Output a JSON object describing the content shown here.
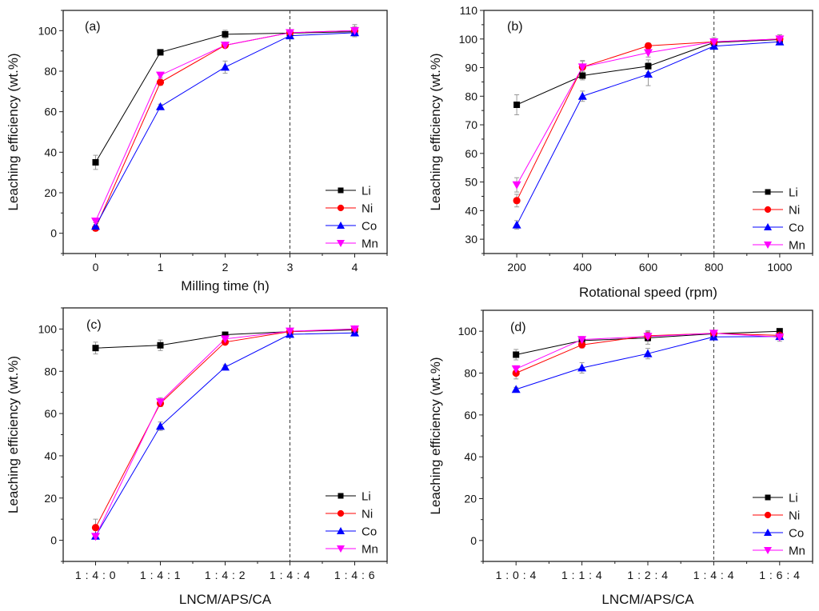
{
  "chart_data": [
    {
      "id": "a",
      "type": "line",
      "panel_label": "(a)",
      "xlabel": "Milling time (h)",
      "ylabel": "Leaching efficiency (wt.%)",
      "x_type": "numeric",
      "x": [
        0,
        1,
        2,
        3,
        4
      ],
      "xlim": [
        -0.5,
        4.5
      ],
      "xticks": [
        0,
        1,
        2,
        3,
        4
      ],
      "xtick_labels": [
        "0",
        "1",
        "2",
        "3",
        "4"
      ],
      "ylim": [
        -10,
        110
      ],
      "yticks": [
        0,
        20,
        40,
        60,
        80,
        100
      ],
      "ytick_labels": [
        "0",
        "20",
        "40",
        "60",
        "80",
        "100"
      ],
      "reference_line_x": 3,
      "legend": "bottom-right",
      "series": [
        {
          "name": "Li",
          "color": "#000000",
          "marker": "square",
          "values": [
            35,
            89.3,
            98.2,
            98.8,
            99.5
          ],
          "errors": [
            3.5,
            1.2,
            2,
            1,
            1.5
          ]
        },
        {
          "name": "Ni",
          "color": "#ff0000",
          "marker": "circle",
          "values": [
            2.5,
            74.5,
            92.8,
            99,
            100
          ],
          "errors": [
            0.8,
            1.5,
            1,
            1,
            3
          ]
        },
        {
          "name": "Co",
          "color": "#0000ff",
          "marker": "triangle-up",
          "values": [
            3.5,
            62.5,
            82,
            97.5,
            99
          ],
          "errors": [
            0.8,
            1.2,
            3,
            1,
            2
          ]
        },
        {
          "name": "Mn",
          "color": "#ff00ff",
          "marker": "triangle-down",
          "values": [
            6,
            78,
            92.8,
            99,
            100
          ],
          "errors": [
            0.8,
            1.2,
            1,
            1,
            2
          ]
        }
      ]
    },
    {
      "id": "b",
      "type": "line",
      "panel_label": "(b)",
      "xlabel": "Rotational speed (rpm)",
      "ylabel": "Leaching efficiency (wt.%)",
      "x_type": "numeric",
      "x": [
        200,
        400,
        600,
        800,
        1000
      ],
      "xlim": [
        100,
        1100
      ],
      "xticks": [
        200,
        400,
        600,
        800,
        1000
      ],
      "xtick_labels": [
        "200",
        "400",
        "600",
        "800",
        "1000"
      ],
      "ylim": [
        25,
        110
      ],
      "yticks": [
        30,
        40,
        50,
        60,
        70,
        80,
        90,
        100,
        110
      ],
      "ytick_labels": [
        "30",
        "40",
        "50",
        "60",
        "70",
        "80",
        "90",
        "100",
        "110"
      ],
      "reference_line_x": 800,
      "legend": "bottom-right",
      "series": [
        {
          "name": "Li",
          "color": "#000000",
          "marker": "square",
          "values": [
            77,
            87.2,
            90.5,
            98.8,
            99.8
          ],
          "errors": [
            3.5,
            1.5,
            2.2,
            1,
            1
          ]
        },
        {
          "name": "Ni",
          "color": "#ff0000",
          "marker": "circle",
          "values": [
            43.5,
            90.2,
            97.6,
            99,
            100
          ],
          "errors": [
            2.2,
            2,
            1,
            1,
            1.5
          ]
        },
        {
          "name": "Co",
          "color": "#0000ff",
          "marker": "triangle-up",
          "values": [
            35,
            80,
            87.7,
            97.5,
            99
          ],
          "errors": [
            1.5,
            1.8,
            4,
            1,
            1
          ]
        },
        {
          "name": "Mn",
          "color": "#ff00ff",
          "marker": "triangle-down",
          "values": [
            49,
            90.2,
            95.2,
            99,
            100
          ],
          "errors": [
            2.5,
            2.3,
            1.5,
            1.5,
            1.5
          ]
        }
      ]
    },
    {
      "id": "c",
      "type": "line",
      "panel_label": "(c)",
      "xlabel": "LNCM/APS/CA",
      "ylabel": "Leaching efficiency (wt.%)",
      "x_type": "categorical",
      "categories": [
        "1 : 4 : 0",
        "1 : 4 : 1",
        "1 : 4 : 2",
        "1 : 4 : 4",
        "1 : 4 : 6"
      ],
      "xlim": [
        -0.5,
        4.5
      ],
      "ylim": [
        -10,
        110
      ],
      "yticks": [
        0,
        20,
        40,
        60,
        80,
        100
      ],
      "ytick_labels": [
        "0",
        "20",
        "40",
        "60",
        "80",
        "100"
      ],
      "reference_line_index": 3,
      "legend": "bottom-right",
      "series": [
        {
          "name": "Li",
          "color": "#000000",
          "marker": "square",
          "values": [
            91,
            92.3,
            97.3,
            98.8,
            99.6
          ],
          "errors": [
            2.8,
            2.5,
            1,
            1,
            1
          ]
        },
        {
          "name": "Ni",
          "color": "#ff0000",
          "marker": "circle",
          "values": [
            6,
            64.8,
            93.8,
            98.8,
            100
          ],
          "errors": [
            4,
            1.5,
            1,
            1,
            1
          ]
        },
        {
          "name": "Co",
          "color": "#0000ff",
          "marker": "triangle-up",
          "values": [
            2,
            54,
            82,
            97.5,
            98.2
          ],
          "errors": [
            1,
            2,
            1,
            1,
            1.2
          ]
        },
        {
          "name": "Mn",
          "color": "#ff00ff",
          "marker": "triangle-down",
          "values": [
            1.8,
            65.5,
            95.3,
            99,
            100
          ],
          "errors": [
            1,
            2,
            1,
            1,
            1
          ]
        }
      ]
    },
    {
      "id": "d",
      "type": "line",
      "panel_label": "(d)",
      "xlabel": "LNCM/APS/CA",
      "ylabel": "Leaching efficiency (wt.%)",
      "x_type": "categorical",
      "categories": [
        "1 : 0 : 4",
        "1 : 1 : 4",
        "1 : 2 : 4",
        "1 : 4 : 4",
        "1 : 6 : 4"
      ],
      "xlim": [
        -0.5,
        4.5
      ],
      "ylim": [
        -10,
        110
      ],
      "yticks": [
        0,
        20,
        40,
        60,
        80,
        100
      ],
      "ytick_labels": [
        "0",
        "20",
        "40",
        "60",
        "80",
        "100"
      ],
      "reference_line_index": 3,
      "legend": "bottom-right",
      "series": [
        {
          "name": "Li",
          "color": "#000000",
          "marker": "square",
          "values": [
            88.8,
            95.5,
            96.8,
            98.8,
            100
          ],
          "errors": [
            2.5,
            1.5,
            3,
            1,
            1
          ]
        },
        {
          "name": "Ni",
          "color": "#ff0000",
          "marker": "circle",
          "values": [
            80,
            93.5,
            97.8,
            99,
            98
          ],
          "errors": [
            2.8,
            1.5,
            2.5,
            1,
            1.5
          ]
        },
        {
          "name": "Co",
          "color": "#0000ff",
          "marker": "triangle-up",
          "values": [
            72.2,
            82.5,
            89.3,
            97.3,
            97.5
          ],
          "errors": [
            1,
            2.5,
            2.5,
            1,
            1
          ]
        },
        {
          "name": "Mn",
          "color": "#ff00ff",
          "marker": "triangle-down",
          "values": [
            82,
            96,
            97.5,
            99,
            97.2
          ],
          "errors": [
            1.5,
            1.5,
            2,
            1,
            2
          ]
        }
      ]
    }
  ]
}
